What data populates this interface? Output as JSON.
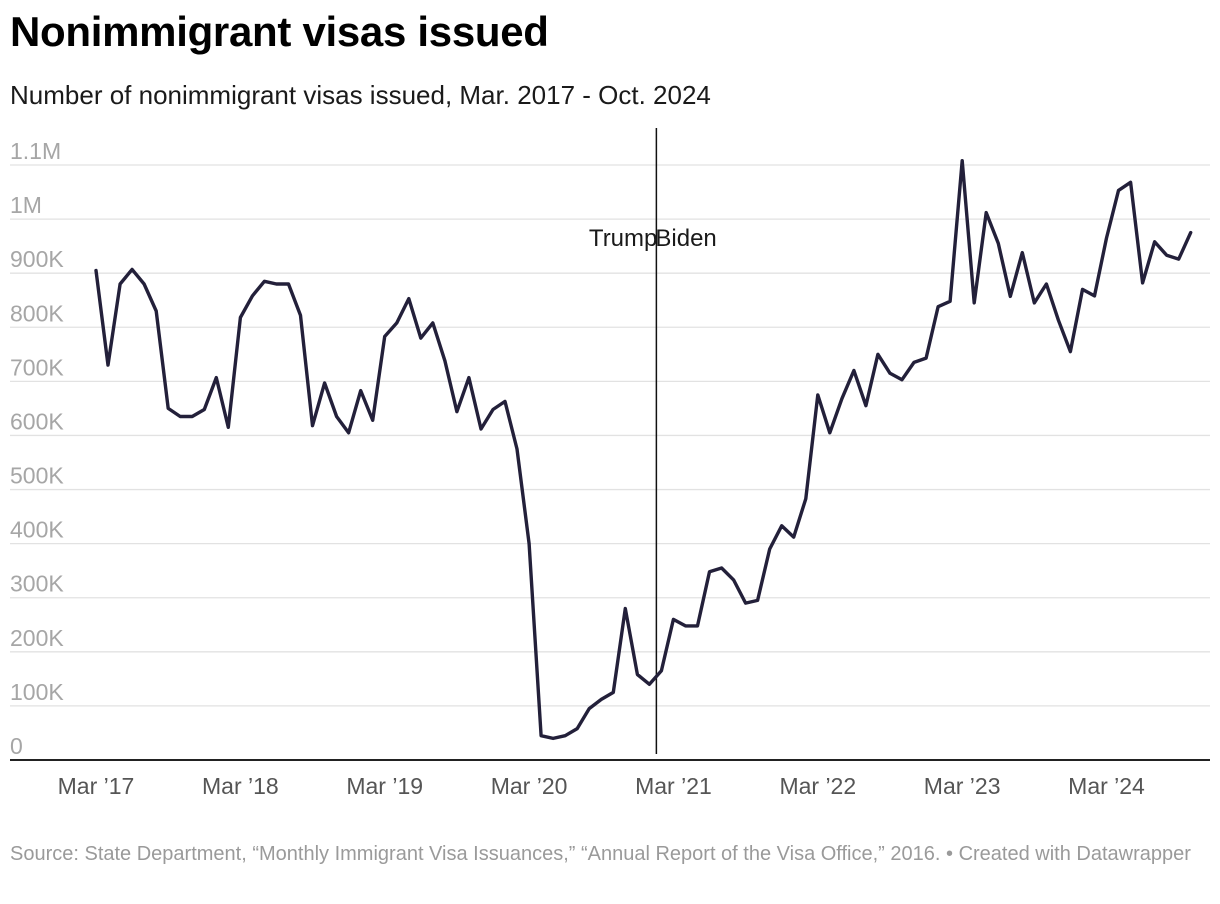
{
  "header": {
    "title": "Nonimmigrant visas issued",
    "subtitle": "Number of nonimmigrant visas issued, Mar. 2017 - Oct. 2024"
  },
  "footer": {
    "source": "Source: State Department, “Monthly Immigrant Visa Issuances,” “Annual Report of the Visa Office,” 2016. • Created with Datawrapper"
  },
  "chart_data": {
    "type": "line",
    "title": "Nonimmigrant visas issued",
    "subtitle": "Number of nonimmigrant visas issued, Mar. 2017 - Oct. 2024",
    "xlabel": "",
    "ylabel": "",
    "ylim": [
      0,
      1100000
    ],
    "grid": true,
    "line_color": "#23203a",
    "y_ticks": [
      {
        "value": 0,
        "label": "0"
      },
      {
        "value": 100000,
        "label": "100K"
      },
      {
        "value": 200000,
        "label": "200K"
      },
      {
        "value": 300000,
        "label": "300K"
      },
      {
        "value": 400000,
        "label": "400K"
      },
      {
        "value": 500000,
        "label": "500K"
      },
      {
        "value": 600000,
        "label": "600K"
      },
      {
        "value": 700000,
        "label": "700K"
      },
      {
        "value": 800000,
        "label": "800K"
      },
      {
        "value": 900000,
        "label": "900K"
      },
      {
        "value": 1000000,
        "label": "1M"
      },
      {
        "value": 1100000,
        "label": "1.1M"
      }
    ],
    "x_ticks": [
      {
        "date": "2017-03",
        "label": "Mar ’17"
      },
      {
        "date": "2018-03",
        "label": "Mar ’18"
      },
      {
        "date": "2019-03",
        "label": "Mar ’19"
      },
      {
        "date": "2020-03",
        "label": "Mar ’20"
      },
      {
        "date": "2021-03",
        "label": "Mar ’21"
      },
      {
        "date": "2022-03",
        "label": "Mar ’22"
      },
      {
        "date": "2023-03",
        "label": "Mar ’23"
      },
      {
        "date": "2024-03",
        "label": "Mar ’24"
      }
    ],
    "annotations": [
      {
        "date": "2021-01",
        "label_left": "Trump",
        "label_right": "Biden"
      }
    ],
    "series": [
      {
        "values": [
          {
            "x": "2017-03",
            "y": 905000
          },
          {
            "x": "2017-04",
            "y": 730000
          },
          {
            "x": "2017-05",
            "y": 880000
          },
          {
            "x": "2017-06",
            "y": 907000
          },
          {
            "x": "2017-07",
            "y": 880000
          },
          {
            "x": "2017-08",
            "y": 830000
          },
          {
            "x": "2017-09",
            "y": 650000
          },
          {
            "x": "2017-10",
            "y": 635000
          },
          {
            "x": "2017-11",
            "y": 635000
          },
          {
            "x": "2017-12",
            "y": 648000
          },
          {
            "x": "2018-01",
            "y": 707000
          },
          {
            "x": "2018-02",
            "y": 615000
          },
          {
            "x": "2018-03",
            "y": 818000
          },
          {
            "x": "2018-04",
            "y": 858000
          },
          {
            "x": "2018-05",
            "y": 885000
          },
          {
            "x": "2018-06",
            "y": 880000
          },
          {
            "x": "2018-07",
            "y": 880000
          },
          {
            "x": "2018-08",
            "y": 822000
          },
          {
            "x": "2018-09",
            "y": 618000
          },
          {
            "x": "2018-10",
            "y": 697000
          },
          {
            "x": "2018-11",
            "y": 635000
          },
          {
            "x": "2018-12",
            "y": 605000
          },
          {
            "x": "2019-01",
            "y": 683000
          },
          {
            "x": "2019-02",
            "y": 628000
          },
          {
            "x": "2019-03",
            "y": 783000
          },
          {
            "x": "2019-04",
            "y": 808000
          },
          {
            "x": "2019-05",
            "y": 853000
          },
          {
            "x": "2019-06",
            "y": 780000
          },
          {
            "x": "2019-07",
            "y": 808000
          },
          {
            "x": "2019-08",
            "y": 738000
          },
          {
            "x": "2019-09",
            "y": 644000
          },
          {
            "x": "2019-10",
            "y": 707000
          },
          {
            "x": "2019-11",
            "y": 612000
          },
          {
            "x": "2019-12",
            "y": 648000
          },
          {
            "x": "2020-01",
            "y": 663000
          },
          {
            "x": "2020-02",
            "y": 575000
          },
          {
            "x": "2020-03",
            "y": 400000
          },
          {
            "x": "2020-04",
            "y": 45000
          },
          {
            "x": "2020-05",
            "y": 40000
          },
          {
            "x": "2020-06",
            "y": 45000
          },
          {
            "x": "2020-07",
            "y": 58000
          },
          {
            "x": "2020-08",
            "y": 95000
          },
          {
            "x": "2020-09",
            "y": 112000
          },
          {
            "x": "2020-10",
            "y": 125000
          },
          {
            "x": "2020-11",
            "y": 280000
          },
          {
            "x": "2020-12",
            "y": 158000
          },
          {
            "x": "2021-01",
            "y": 140000
          },
          {
            "x": "2021-02",
            "y": 165000
          },
          {
            "x": "2021-03",
            "y": 260000
          },
          {
            "x": "2021-04",
            "y": 248000
          },
          {
            "x": "2021-05",
            "y": 248000
          },
          {
            "x": "2021-06",
            "y": 348000
          },
          {
            "x": "2021-07",
            "y": 355000
          },
          {
            "x": "2021-08",
            "y": 333000
          },
          {
            "x": "2021-09",
            "y": 290000
          },
          {
            "x": "2021-10",
            "y": 295000
          },
          {
            "x": "2021-11",
            "y": 390000
          },
          {
            "x": "2021-12",
            "y": 433000
          },
          {
            "x": "2022-01",
            "y": 412000
          },
          {
            "x": "2022-02",
            "y": 483000
          },
          {
            "x": "2022-03",
            "y": 675000
          },
          {
            "x": "2022-04",
            "y": 605000
          },
          {
            "x": "2022-05",
            "y": 668000
          },
          {
            "x": "2022-06",
            "y": 720000
          },
          {
            "x": "2022-07",
            "y": 655000
          },
          {
            "x": "2022-08",
            "y": 750000
          },
          {
            "x": "2022-09",
            "y": 715000
          },
          {
            "x": "2022-10",
            "y": 703000
          },
          {
            "x": "2022-11",
            "y": 735000
          },
          {
            "x": "2022-12",
            "y": 743000
          },
          {
            "x": "2023-01",
            "y": 838000
          },
          {
            "x": "2023-02",
            "y": 848000
          },
          {
            "x": "2023-03",
            "y": 1108000
          },
          {
            "x": "2023-04",
            "y": 845000
          },
          {
            "x": "2023-05",
            "y": 1012000
          },
          {
            "x": "2023-06",
            "y": 955000
          },
          {
            "x": "2023-07",
            "y": 857000
          },
          {
            "x": "2023-08",
            "y": 938000
          },
          {
            "x": "2023-09",
            "y": 845000
          },
          {
            "x": "2023-10",
            "y": 880000
          },
          {
            "x": "2023-11",
            "y": 813000
          },
          {
            "x": "2023-12",
            "y": 755000
          },
          {
            "x": "2024-01",
            "y": 870000
          },
          {
            "x": "2024-02",
            "y": 858000
          },
          {
            "x": "2024-03",
            "y": 965000
          },
          {
            "x": "2024-04",
            "y": 1053000
          },
          {
            "x": "2024-05",
            "y": 1068000
          },
          {
            "x": "2024-06",
            "y": 882000
          },
          {
            "x": "2024-07",
            "y": 958000
          },
          {
            "x": "2024-08",
            "y": 933000
          },
          {
            "x": "2024-09",
            "y": 926000
          },
          {
            "x": "2024-10",
            "y": 975000
          }
        ]
      }
    ]
  }
}
